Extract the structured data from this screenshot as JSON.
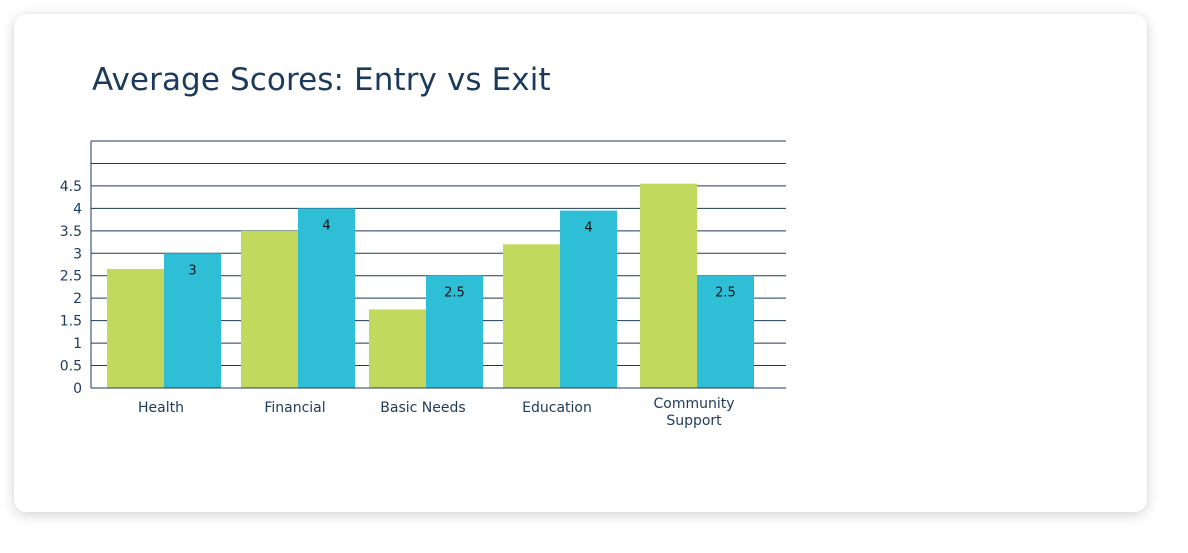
{
  "chart_data": {
    "type": "bar",
    "title": "Average Scores: Entry vs Exit",
    "categories": [
      "Health",
      "Financial",
      "Basic Needs",
      "Education",
      "Community Support"
    ],
    "category_lines": [
      [
        "Health"
      ],
      [
        "Financial"
      ],
      [
        "Basic Needs"
      ],
      [
        "Education"
      ],
      [
        "Community",
        "Support"
      ]
    ],
    "series": [
      {
        "values": [
          2.65,
          3.5,
          1.75,
          3.2,
          4.55
        ],
        "color": "#c3d95e",
        "labels": [
          null,
          null,
          null,
          null,
          null
        ]
      },
      {
        "values": [
          3.0,
          4.0,
          2.5,
          3.95,
          2.5
        ],
        "color": "#2ebfd6",
        "labels": [
          "3",
          "4",
          "2.5",
          "4",
          "2.5"
        ]
      }
    ],
    "yticks": [
      "0",
      "0.5",
      "1",
      "1.5",
      "2",
      "2.5",
      "3",
      "3.5",
      "4",
      "4.5"
    ],
    "ylim": [
      0,
      5.5
    ],
    "grid": true,
    "legend": "none"
  }
}
